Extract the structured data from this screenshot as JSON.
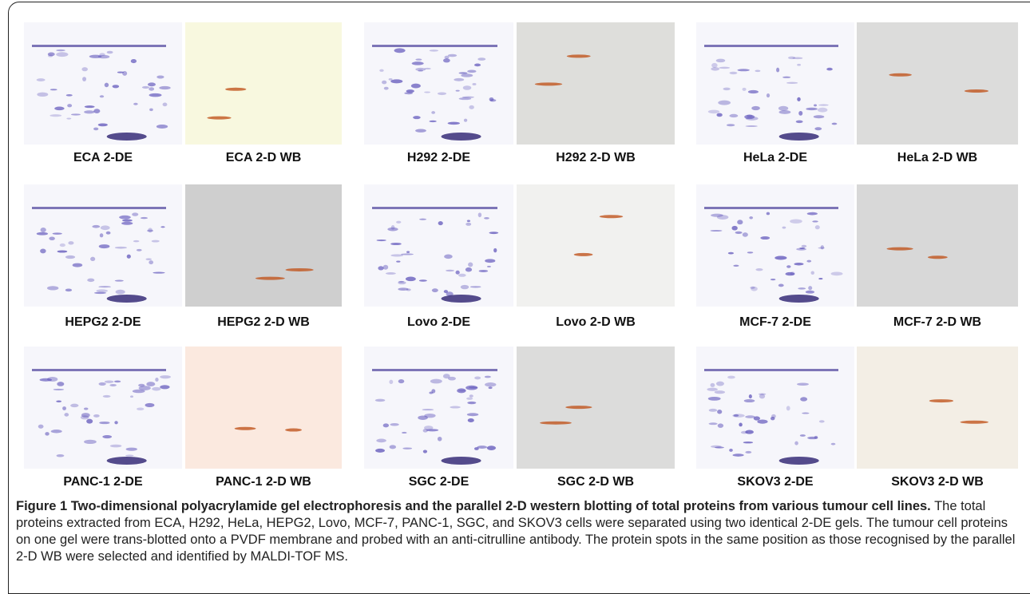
{
  "panels": [
    {
      "label": "ECA 2-DE"
    },
    {
      "label": "ECA 2-D WB"
    },
    {
      "label": "H292 2-DE"
    },
    {
      "label": "H292 2-D WB"
    },
    {
      "label": "HeLa 2-DE"
    },
    {
      "label": "HeLa 2-D WB"
    },
    {
      "label": "HEPG2 2-DE"
    },
    {
      "label": "HEPG2 2-D WB"
    },
    {
      "label": "Lovo 2-DE"
    },
    {
      "label": "Lovo 2-D WB"
    },
    {
      "label": "MCF-7 2-DE"
    },
    {
      "label": "MCF-7 2-D WB"
    },
    {
      "label": "PANC-1 2-DE"
    },
    {
      "label": "PANC-1 2-D WB"
    },
    {
      "label": "SGC 2-DE"
    },
    {
      "label": "SGC 2-D WB"
    },
    {
      "label": "SKOV3 2-DE"
    },
    {
      "label": "SKOV3 2-D WB"
    }
  ],
  "caption": {
    "title": "Figure 1 Two-dimensional polyacrylamide gel electrophoresis and the parallel 2-D western blotting of total proteins from various tumour cell lines.",
    "text": "The total proteins extracted from ECA, H292, HeLa, HEPG2, Lovo, MCF-7, PANC-1, SGC, and SKOV3 cells were separated using two identical 2-DE gels. The tumour cell proteins on one gel were trans-blotted onto a PVDF membrane and probed with an anti-citrulline antibody. The protein spots in the same position as those recognised by the parallel 2-D WB were selected and identified by MALDI-TOF MS."
  }
}
